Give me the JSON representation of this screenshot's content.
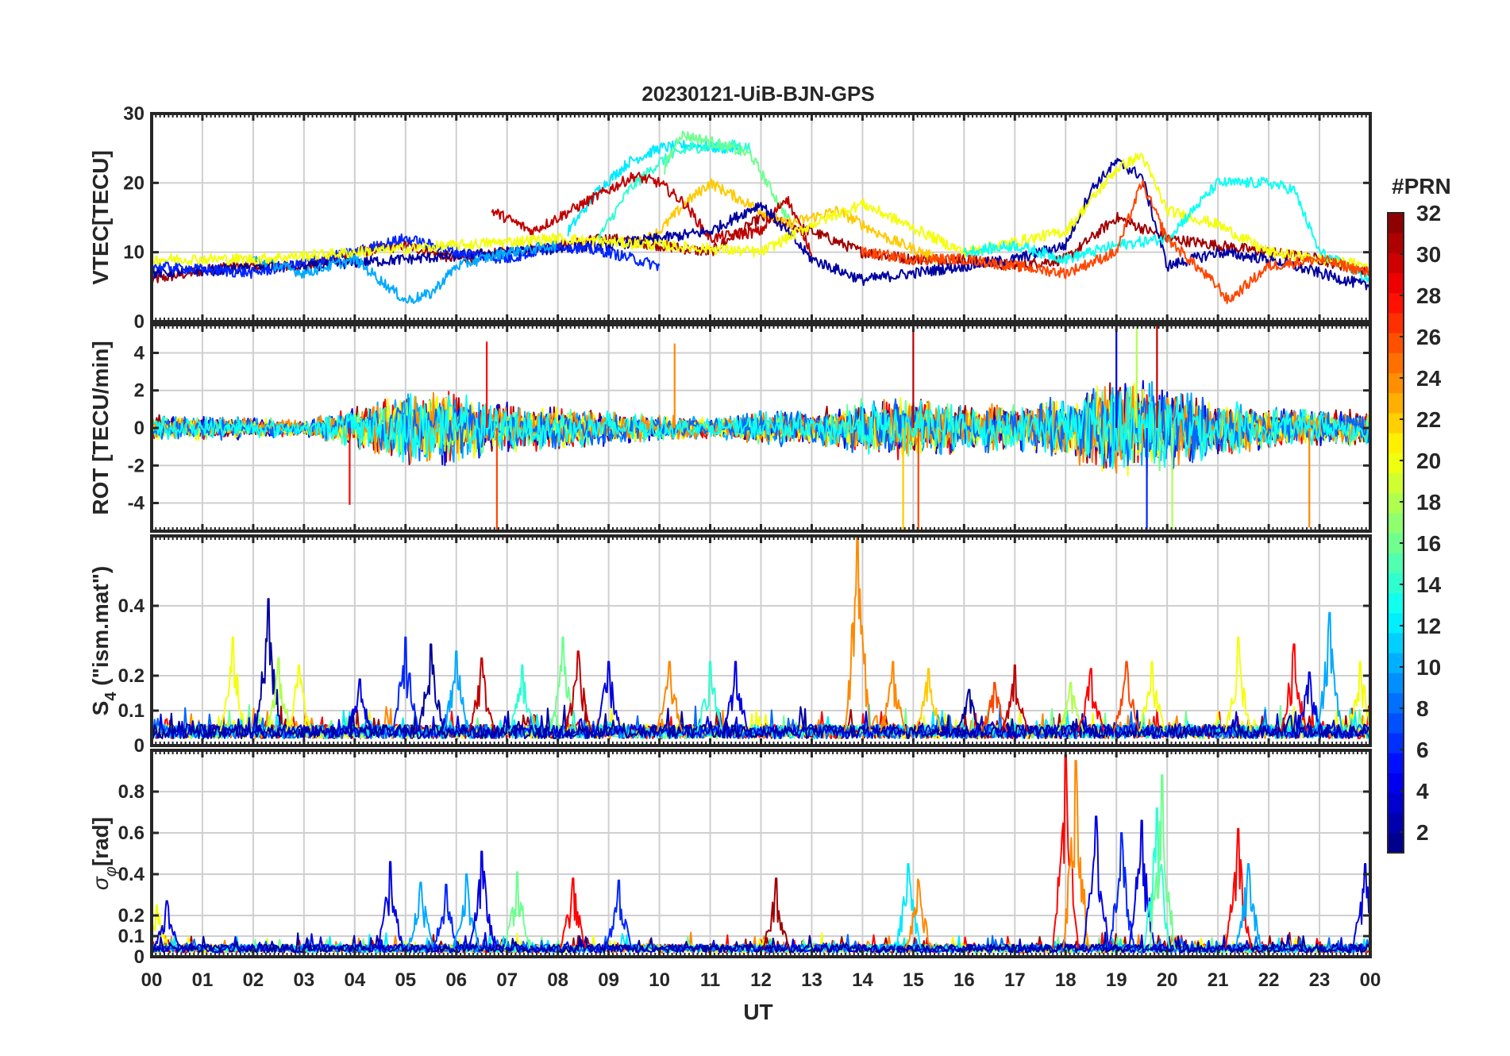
{
  "figure": {
    "title": "20230121-UiB-BJN-GPS",
    "xlabel": "UT"
  },
  "colorbar": {
    "title": "#PRN",
    "ticks": [
      "2",
      "4",
      "6",
      "8",
      "10",
      "12",
      "14",
      "16",
      "18",
      "20",
      "22",
      "24",
      "26",
      "28",
      "30",
      "32"
    ],
    "range": [
      1,
      32
    ],
    "colormap": "jet",
    "levels": 32
  },
  "chart_data": [
    {
      "type": "line",
      "panel": "vtec",
      "ylabel": "VTEC[TECU]",
      "ylim": [
        0,
        30
      ],
      "yticks": [
        0,
        10,
        20,
        30
      ],
      "ytick_labels": [
        "0",
        "10",
        "20",
        "30"
      ],
      "xlim": [
        0,
        24
      ],
      "xticks": [
        "00",
        "01",
        "02",
        "03",
        "04",
        "05",
        "06",
        "07",
        "08",
        "09",
        "10",
        "11",
        "12",
        "13",
        "14",
        "15",
        "16",
        "17",
        "18",
        "19",
        "20",
        "21",
        "22",
        "23",
        "00"
      ],
      "grid": true,
      "series": [
        {
          "prn": 31,
          "x": [
            0,
            1.5,
            3,
            4,
            5,
            6,
            7,
            8,
            9,
            10,
            11,
            12,
            13,
            14,
            15,
            16,
            17,
            18,
            19,
            20,
            21,
            22,
            23,
            24
          ],
          "values": [
            6,
            8,
            8,
            10,
            11,
            9,
            10,
            11,
            12,
            11,
            10,
            15,
            13,
            10,
            9,
            9,
            8,
            9,
            15,
            12,
            11,
            10,
            9,
            7
          ]
        },
        {
          "prn": 12,
          "x": [
            8.2,
            8.8,
            9.4,
            10,
            10.6,
            11.2,
            11.6
          ],
          "values": [
            13,
            19,
            23,
            25,
            25.5,
            25,
            25
          ]
        },
        {
          "prn": 14,
          "x": [
            8.8,
            9.4,
            10,
            10.6,
            11.4,
            11.8
          ],
          "values": [
            12,
            19,
            23,
            25,
            25.5,
            25
          ]
        },
        {
          "prn": 16,
          "x": [
            10.1,
            10.4,
            11,
            11.8,
            12.6
          ],
          "values": [
            22,
            27,
            26,
            24,
            14
          ]
        },
        {
          "prn": 22,
          "x": [
            9.5,
            10,
            10.5,
            11,
            11.5,
            12.5,
            13.5,
            14.5,
            15.5
          ],
          "values": [
            11,
            13,
            17,
            20,
            18,
            14,
            16,
            12,
            9
          ]
        },
        {
          "prn": 30,
          "x": [
            6.7,
            7.5,
            8.5,
            9.5,
            10,
            10.5,
            11,
            12,
            12.5,
            13
          ],
          "values": [
            16,
            13,
            17,
            21,
            20,
            17,
            12,
            13,
            18,
            10
          ]
        },
        {
          "prn": 2,
          "x": [
            0,
            3,
            5,
            7,
            9,
            11,
            12,
            13,
            14,
            16,
            17,
            18,
            18.5,
            19,
            19.5,
            20,
            21,
            22,
            23,
            24
          ],
          "values": [
            7,
            8,
            9,
            10,
            11,
            13,
            17,
            9,
            6,
            8,
            9,
            11,
            19,
            23,
            21,
            8,
            10,
            9,
            7,
            5
          ]
        },
        {
          "prn": 6,
          "x": [
            0,
            2,
            4,
            5,
            6,
            7,
            8,
            9,
            10
          ],
          "values": [
            8,
            7,
            10,
            12,
            10,
            9,
            11,
            10,
            8
          ]
        },
        {
          "prn": 10,
          "x": [
            2,
            3,
            4,
            5,
            5.5,
            6,
            7,
            8
          ],
          "values": [
            9,
            7,
            9,
            3,
            4,
            8,
            10,
            11
          ]
        },
        {
          "prn": 20,
          "x": [
            0,
            2,
            4,
            6,
            8,
            10,
            12,
            13,
            14,
            16,
            18,
            19,
            19.5,
            20,
            21,
            22,
            23,
            24
          ],
          "values": [
            9,
            9,
            10,
            11,
            12,
            11,
            10,
            14,
            17,
            10,
            13,
            22,
            24,
            16,
            14,
            10,
            9,
            8
          ]
        },
        {
          "prn": 13,
          "x": [
            16,
            17,
            18,
            19,
            20,
            21,
            22,
            22.5,
            23,
            24
          ],
          "values": [
            10,
            11,
            9,
            11,
            12,
            20,
            20,
            19,
            10,
            6
          ]
        },
        {
          "prn": 26,
          "x": [
            14,
            15,
            16,
            17,
            18,
            19,
            19.5,
            20,
            21,
            21.2,
            22,
            23,
            24
          ],
          "values": [
            10,
            9,
            9,
            8,
            7,
            10,
            20,
            12,
            5,
            3,
            8,
            9,
            7
          ]
        }
      ]
    },
    {
      "type": "line",
      "panel": "rot",
      "ylabel": "ROT [TECU/min]",
      "ylim": [
        -5.5,
        5.5
      ],
      "yticks": [
        -4,
        -2,
        0,
        2,
        4
      ],
      "ytick_labels": [
        "-4",
        "-2",
        "0",
        "2",
        "4"
      ],
      "xlim": [
        0,
        24
      ],
      "grid": true,
      "noise_profile": {
        "x": [
          0,
          2,
          3,
          4,
          5,
          6,
          7,
          8,
          9,
          10,
          11,
          12,
          13,
          14,
          15,
          16,
          17,
          18,
          19,
          20,
          21,
          22,
          23,
          24
        ],
        "amplitude": [
          0.8,
          0.6,
          0.5,
          1.2,
          2.2,
          2.0,
          1.4,
          1.2,
          1.0,
          0.7,
          0.6,
          1.0,
          1.0,
          1.6,
          1.8,
          1.4,
          1.3,
          1.8,
          2.8,
          2.6,
          1.6,
          1.2,
          1.0,
          1.0
        ]
      },
      "spikes": [
        {
          "x": 3.9,
          "value": -4.1,
          "prn": 28
        },
        {
          "x": 6.8,
          "value": -5.5,
          "prn": 26
        },
        {
          "x": 6.6,
          "value": 4.6,
          "prn": 28
        },
        {
          "x": 10.3,
          "value": 4.5,
          "prn": 24
        },
        {
          "x": 14.8,
          "value": -5.5,
          "prn": 22
        },
        {
          "x": 15.0,
          "value": 5.5,
          "prn": 30
        },
        {
          "x": 15.1,
          "value": -5.5,
          "prn": 26
        },
        {
          "x": 19.0,
          "value": 5.5,
          "prn": 4
        },
        {
          "x": 19.4,
          "value": 5.5,
          "prn": 18
        },
        {
          "x": 19.6,
          "value": -5.5,
          "prn": 6
        },
        {
          "x": 19.8,
          "value": 5.5,
          "prn": 30
        },
        {
          "x": 20.1,
          "value": -5.5,
          "prn": 18
        },
        {
          "x": 22.8,
          "value": -5.3,
          "prn": 24
        }
      ]
    },
    {
      "type": "line",
      "panel": "s4",
      "ylabel": "S4 (\"ism.mat\")",
      "ylim": [
        0,
        0.6
      ],
      "yticks": [
        0,
        0.1,
        0.2,
        0.4
      ],
      "ytick_labels": [
        "0",
        "0.1",
        "0.2",
        "0.4"
      ],
      "xlim": [
        0,
        24
      ],
      "grid": true,
      "baseline": 0.04,
      "spikes": [
        {
          "x": 1.6,
          "value": 0.31,
          "prn": 20
        },
        {
          "x": 2.3,
          "value": 0.42,
          "prn": 2
        },
        {
          "x": 2.5,
          "value": 0.25,
          "prn": 18
        },
        {
          "x": 2.9,
          "value": 0.23,
          "prn": 20
        },
        {
          "x": 4.1,
          "value": 0.19,
          "prn": 4
        },
        {
          "x": 5.0,
          "value": 0.31,
          "prn": 6
        },
        {
          "x": 5.5,
          "value": 0.29,
          "prn": 2
        },
        {
          "x": 6.0,
          "value": 0.27,
          "prn": 10
        },
        {
          "x": 6.5,
          "value": 0.25,
          "prn": 30
        },
        {
          "x": 7.3,
          "value": 0.23,
          "prn": 14
        },
        {
          "x": 8.1,
          "value": 0.31,
          "prn": 16
        },
        {
          "x": 8.4,
          "value": 0.27,
          "prn": 30
        },
        {
          "x": 9.0,
          "value": 0.24,
          "prn": 4
        },
        {
          "x": 10.2,
          "value": 0.24,
          "prn": 24
        },
        {
          "x": 11.0,
          "value": 0.24,
          "prn": 14
        },
        {
          "x": 11.5,
          "value": 0.24,
          "prn": 4
        },
        {
          "x": 13.9,
          "value": 0.6,
          "prn": 24
        },
        {
          "x": 14.6,
          "value": 0.24,
          "prn": 24
        },
        {
          "x": 15.3,
          "value": 0.22,
          "prn": 22
        },
        {
          "x": 16.1,
          "value": 0.16,
          "prn": 2
        },
        {
          "x": 16.6,
          "value": 0.18,
          "prn": 26
        },
        {
          "x": 17.0,
          "value": 0.23,
          "prn": 30
        },
        {
          "x": 18.1,
          "value": 0.18,
          "prn": 18
        },
        {
          "x": 18.5,
          "value": 0.22,
          "prn": 28
        },
        {
          "x": 19.2,
          "value": 0.24,
          "prn": 26
        },
        {
          "x": 19.7,
          "value": 0.24,
          "prn": 20
        },
        {
          "x": 21.4,
          "value": 0.31,
          "prn": 20
        },
        {
          "x": 22.5,
          "value": 0.29,
          "prn": 28
        },
        {
          "x": 22.8,
          "value": 0.21,
          "prn": 4
        },
        {
          "x": 23.2,
          "value": 0.38,
          "prn": 10
        },
        {
          "x": 23.8,
          "value": 0.24,
          "prn": 20
        }
      ]
    },
    {
      "type": "line",
      "panel": "sigma_phi",
      "ylabel": "σφ[rad]",
      "ylim": [
        0,
        1.0
      ],
      "yticks": [
        0,
        0.1,
        0.2,
        0.4,
        0.6,
        0.8
      ],
      "ytick_labels": [
        "0",
        "0.1",
        "0.2",
        "0.4",
        "0.6",
        "0.8"
      ],
      "xlim": [
        0,
        24
      ],
      "grid": true,
      "baseline": 0.04,
      "spikes": [
        {
          "x": 0.1,
          "value": 0.25,
          "prn": 20
        },
        {
          "x": 0.3,
          "value": 0.27,
          "prn": 4
        },
        {
          "x": 4.7,
          "value": 0.46,
          "prn": 4
        },
        {
          "x": 5.3,
          "value": 0.36,
          "prn": 10
        },
        {
          "x": 5.8,
          "value": 0.35,
          "prn": 6
        },
        {
          "x": 6.2,
          "value": 0.4,
          "prn": 10
        },
        {
          "x": 6.5,
          "value": 0.51,
          "prn": 4
        },
        {
          "x": 7.2,
          "value": 0.41,
          "prn": 16
        },
        {
          "x": 8.3,
          "value": 0.38,
          "prn": 28
        },
        {
          "x": 9.2,
          "value": 0.37,
          "prn": 6
        },
        {
          "x": 12.3,
          "value": 0.38,
          "prn": 31
        },
        {
          "x": 14.9,
          "value": 0.45,
          "prn": 12
        },
        {
          "x": 15.1,
          "value": 0.38,
          "prn": 24
        },
        {
          "x": 18.0,
          "value": 0.98,
          "prn": 28
        },
        {
          "x": 18.2,
          "value": 0.95,
          "prn": 24
        },
        {
          "x": 18.6,
          "value": 0.68,
          "prn": 4
        },
        {
          "x": 19.1,
          "value": 0.6,
          "prn": 6
        },
        {
          "x": 19.5,
          "value": 0.66,
          "prn": 4
        },
        {
          "x": 19.8,
          "value": 0.72,
          "prn": 14
        },
        {
          "x": 19.9,
          "value": 0.88,
          "prn": 16
        },
        {
          "x": 21.4,
          "value": 0.62,
          "prn": 28
        },
        {
          "x": 21.6,
          "value": 0.45,
          "prn": 10
        },
        {
          "x": 23.9,
          "value": 0.45,
          "prn": 4
        }
      ]
    }
  ]
}
